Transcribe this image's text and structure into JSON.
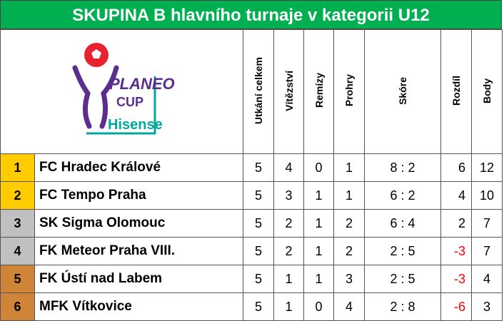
{
  "header": {
    "title": "SKUPINA B hlavního turnaje v kategorii U12"
  },
  "logo": {
    "brand": "PLANEO",
    "sub": "CUP",
    "sponsor": "Hisense"
  },
  "table": {
    "columns": [
      "Utkání celkem",
      "Vítězství",
      "Remízy",
      "Prohry",
      "Skóre",
      "Rozdíl",
      "Body"
    ],
    "rows": [
      [
        1,
        "FC Hradec Králové",
        5,
        4,
        0,
        1,
        "8 : 2",
        6,
        12
      ],
      [
        2,
        "FC Tempo Praha",
        5,
        3,
        1,
        1,
        "6 : 2",
        4,
        10
      ],
      [
        3,
        "SK Sigma Olomouc",
        5,
        2,
        1,
        2,
        "6 : 4",
        2,
        7
      ],
      [
        4,
        "FK Meteor Praha VIII.",
        5,
        2,
        1,
        2,
        "2 : 5",
        -3,
        7
      ],
      [
        5,
        "FK Ústí nad Labem",
        5,
        1,
        1,
        3,
        "2 : 5",
        -3,
        4
      ],
      [
        6,
        "MFK Vítkovice",
        5,
        1,
        0,
        4,
        "2 : 8",
        -6,
        3
      ]
    ]
  }
}
